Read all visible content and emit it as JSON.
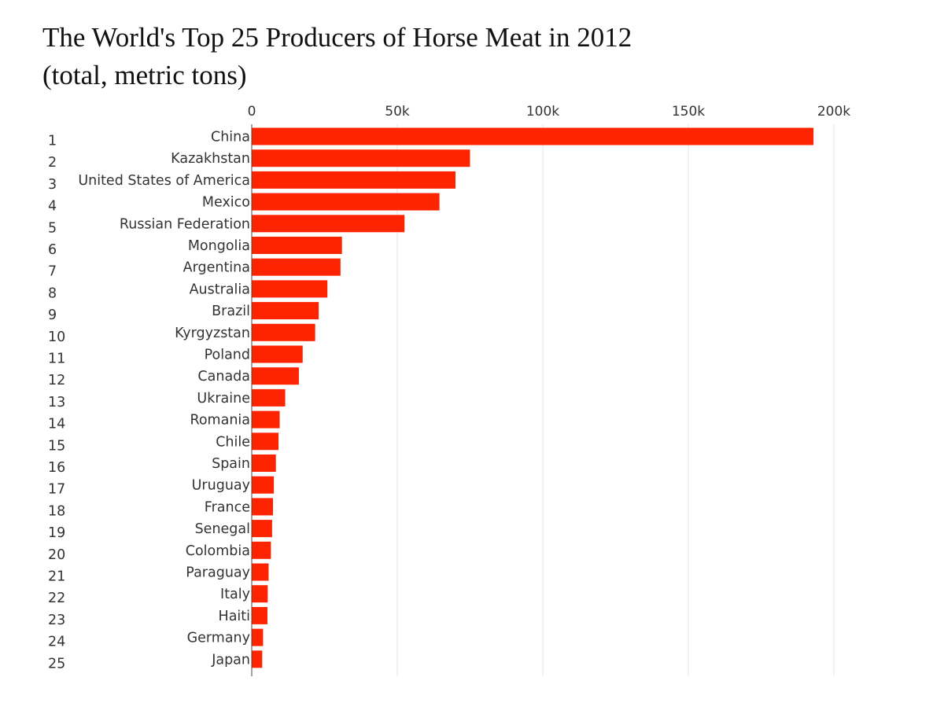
{
  "chart_data": {
    "type": "bar",
    "orientation": "horizontal",
    "title": "The World's Top 25 Producers of Horse Meat in 2012",
    "subtitle": "(total, metric tons)",
    "xlabel": "",
    "ylabel": "",
    "xlim": [
      0,
      200000
    ],
    "x_ticks": [
      0,
      50000,
      100000,
      150000,
      200000
    ],
    "x_tick_labels": [
      "0",
      "50k",
      "100k",
      "150k",
      "200k"
    ],
    "x_axis_position": "top",
    "grid": true,
    "bar_color": "#ff2400",
    "ranks": [
      "1",
      "2",
      "3",
      "4",
      "5",
      "6",
      "7",
      "8",
      "9",
      "10",
      "11",
      "12",
      "13",
      "14",
      "15",
      "16",
      "17",
      "18",
      "19",
      "20",
      "21",
      "22",
      "23",
      "24",
      "25"
    ],
    "categories": [
      "China",
      "Kazakhstan",
      "United States of America",
      "Mexico",
      "Russian Federation",
      "Mongolia",
      "Argentina",
      "Australia",
      "Brazil",
      "Kyrgyzstan",
      "Poland",
      "Canada",
      "Ukraine",
      "Romania",
      "Chile",
      "Spain",
      "Uruguay",
      "France",
      "Senegal",
      "Colombia",
      "Paraguay",
      "Italy",
      "Haiti",
      "Germany",
      "Japan"
    ],
    "values": [
      193000,
      75000,
      70000,
      64500,
      52500,
      31000,
      30500,
      26000,
      23000,
      21800,
      17500,
      16200,
      11500,
      9600,
      9200,
      8300,
      7600,
      7300,
      7000,
      6600,
      5800,
      5500,
      5400,
      3900,
      3600
    ]
  }
}
